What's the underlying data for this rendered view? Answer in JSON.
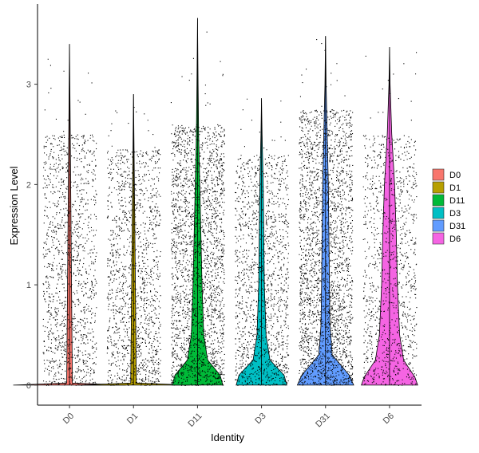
{
  "chart_data": {
    "type": "violin",
    "xlabel": "Identity",
    "ylabel": "Expression Level",
    "ylim": [
      -0.2,
      3.8
    ],
    "y_ticks": [
      0,
      1,
      2,
      3
    ],
    "grid": false,
    "legend_position": "right",
    "categories": [
      "D0",
      "D1",
      "D11",
      "D3",
      "D31",
      "D6"
    ],
    "series": [
      {
        "name": "D0",
        "color": "#F8766D",
        "max": 3.4,
        "density_profile": [
          [
            0,
            1.0
          ],
          [
            0.02,
            0.05
          ],
          [
            3.4,
            0
          ]
        ],
        "point_density": 0.9,
        "point_range": [
          0.0,
          2.5
        ]
      },
      {
        "name": "D1",
        "color": "#B79F00",
        "max": 2.9,
        "density_profile": [
          [
            0,
            1.0
          ],
          [
            0.02,
            0.05
          ],
          [
            2.9,
            0
          ]
        ],
        "point_density": 1.0,
        "point_range": [
          0.0,
          2.35
        ]
      },
      {
        "name": "D11",
        "color": "#00BA38",
        "max": 3.66,
        "density_profile": [
          [
            0,
            0.45
          ],
          [
            0.1,
            0.4
          ],
          [
            0.25,
            0.18
          ],
          [
            0.5,
            0.11
          ],
          [
            1.0,
            0.08
          ],
          [
            1.5,
            0.06
          ],
          [
            2.0,
            0.04
          ],
          [
            2.5,
            0.02
          ],
          [
            3.0,
            0.01
          ],
          [
            3.66,
            0
          ]
        ],
        "point_density": 1.6,
        "point_range": [
          0.0,
          2.6
        ]
      },
      {
        "name": "D3",
        "color": "#00BFC4",
        "max": 2.86,
        "density_profile": [
          [
            0,
            0.45
          ],
          [
            0.1,
            0.4
          ],
          [
            0.25,
            0.15
          ],
          [
            0.5,
            0.08
          ],
          [
            1.0,
            0.05
          ],
          [
            1.5,
            0.04
          ],
          [
            2.0,
            0.03
          ],
          [
            2.5,
            0.01
          ],
          [
            2.86,
            0
          ]
        ],
        "point_density": 1.0,
        "point_range": [
          0.0,
          2.3
        ]
      },
      {
        "name": "D31",
        "color": "#619CFF",
        "max": 3.48,
        "density_profile": [
          [
            0,
            0.5
          ],
          [
            0.1,
            0.42
          ],
          [
            0.3,
            0.12
          ],
          [
            0.6,
            0.08
          ],
          [
            1.0,
            0.07
          ],
          [
            1.5,
            0.06
          ],
          [
            2.0,
            0.05
          ],
          [
            2.5,
            0.03
          ],
          [
            3.0,
            0.01
          ],
          [
            3.48,
            0
          ]
        ],
        "point_density": 1.8,
        "point_range": [
          0.0,
          2.75
        ]
      },
      {
        "name": "D6",
        "color": "#F564E3",
        "max": 3.37,
        "density_profile": [
          [
            0,
            0.5
          ],
          [
            0.08,
            0.45
          ],
          [
            0.25,
            0.25
          ],
          [
            0.5,
            0.18
          ],
          [
            1.0,
            0.14
          ],
          [
            1.5,
            0.12
          ],
          [
            2.0,
            0.09
          ],
          [
            2.5,
            0.04
          ],
          [
            3.0,
            0.01
          ],
          [
            3.37,
            0
          ]
        ],
        "point_density": 0.8,
        "point_range": [
          0.0,
          2.5
        ]
      }
    ]
  }
}
